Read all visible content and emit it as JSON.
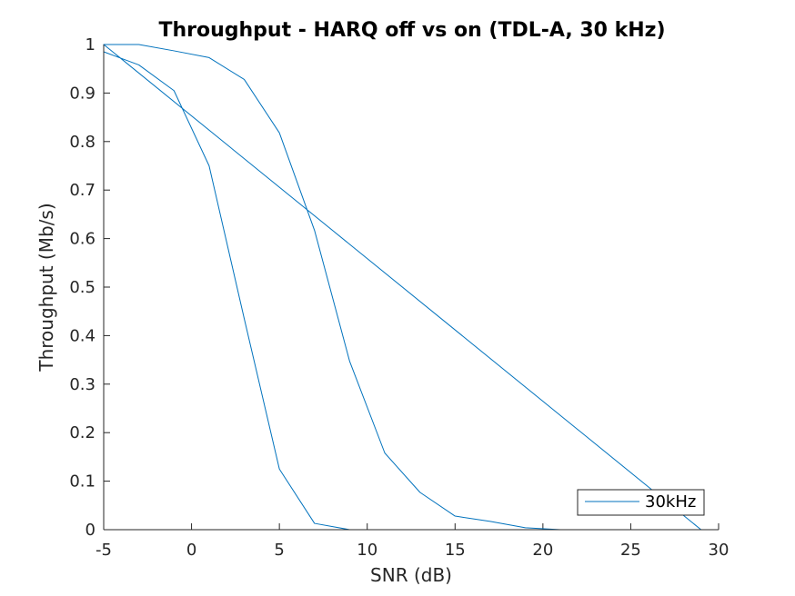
{
  "chart_data": {
    "type": "line",
    "title": "Throughput - HARQ off vs on (TDL-A, 30 kHz)",
    "xlabel": "SNR (dB)",
    "ylabel": "Throughput (Mb/s)",
    "xlim": [
      -5,
      30
    ],
    "ylim": [
      0,
      1
    ],
    "xticks": [
      -5,
      0,
      5,
      10,
      15,
      20,
      25,
      30
    ],
    "yticks": [
      0,
      0.1,
      0.2,
      0.3,
      0.4,
      0.5,
      0.6,
      0.7,
      0.8,
      0.9,
      1
    ],
    "grid": false,
    "legend": {
      "position": "bottom-right",
      "entries": [
        "30kHz"
      ]
    },
    "colors": {
      "series": "#0072BD",
      "axes": "#262626"
    },
    "series": [
      {
        "name": "30kHz",
        "x": [
          -5,
          -3,
          -1,
          1,
          3,
          5,
          7,
          9,
          11,
          13,
          15,
          17,
          19,
          21,
          23,
          25,
          27,
          29,
          -5,
          -3,
          -1,
          1,
          3,
          5,
          7,
          9,
          11,
          13,
          15,
          17,
          19,
          21,
          23,
          25,
          27,
          29
        ],
        "y": [
          0.985,
          0.958,
          0.905,
          0.75,
          0.435,
          0.125,
          0.013,
          0.0,
          0.0,
          0.0,
          0.0,
          0.0,
          0.0,
          0.0,
          0.0,
          0.0,
          0.0,
          0.0,
          1.0,
          1.0,
          0.987,
          0.973,
          0.928,
          0.818,
          0.617,
          0.347,
          0.158,
          0.077,
          0.028,
          0.017,
          0.004,
          0.0,
          0.0,
          0.0,
          0.0,
          0.0
        ]
      }
    ]
  }
}
